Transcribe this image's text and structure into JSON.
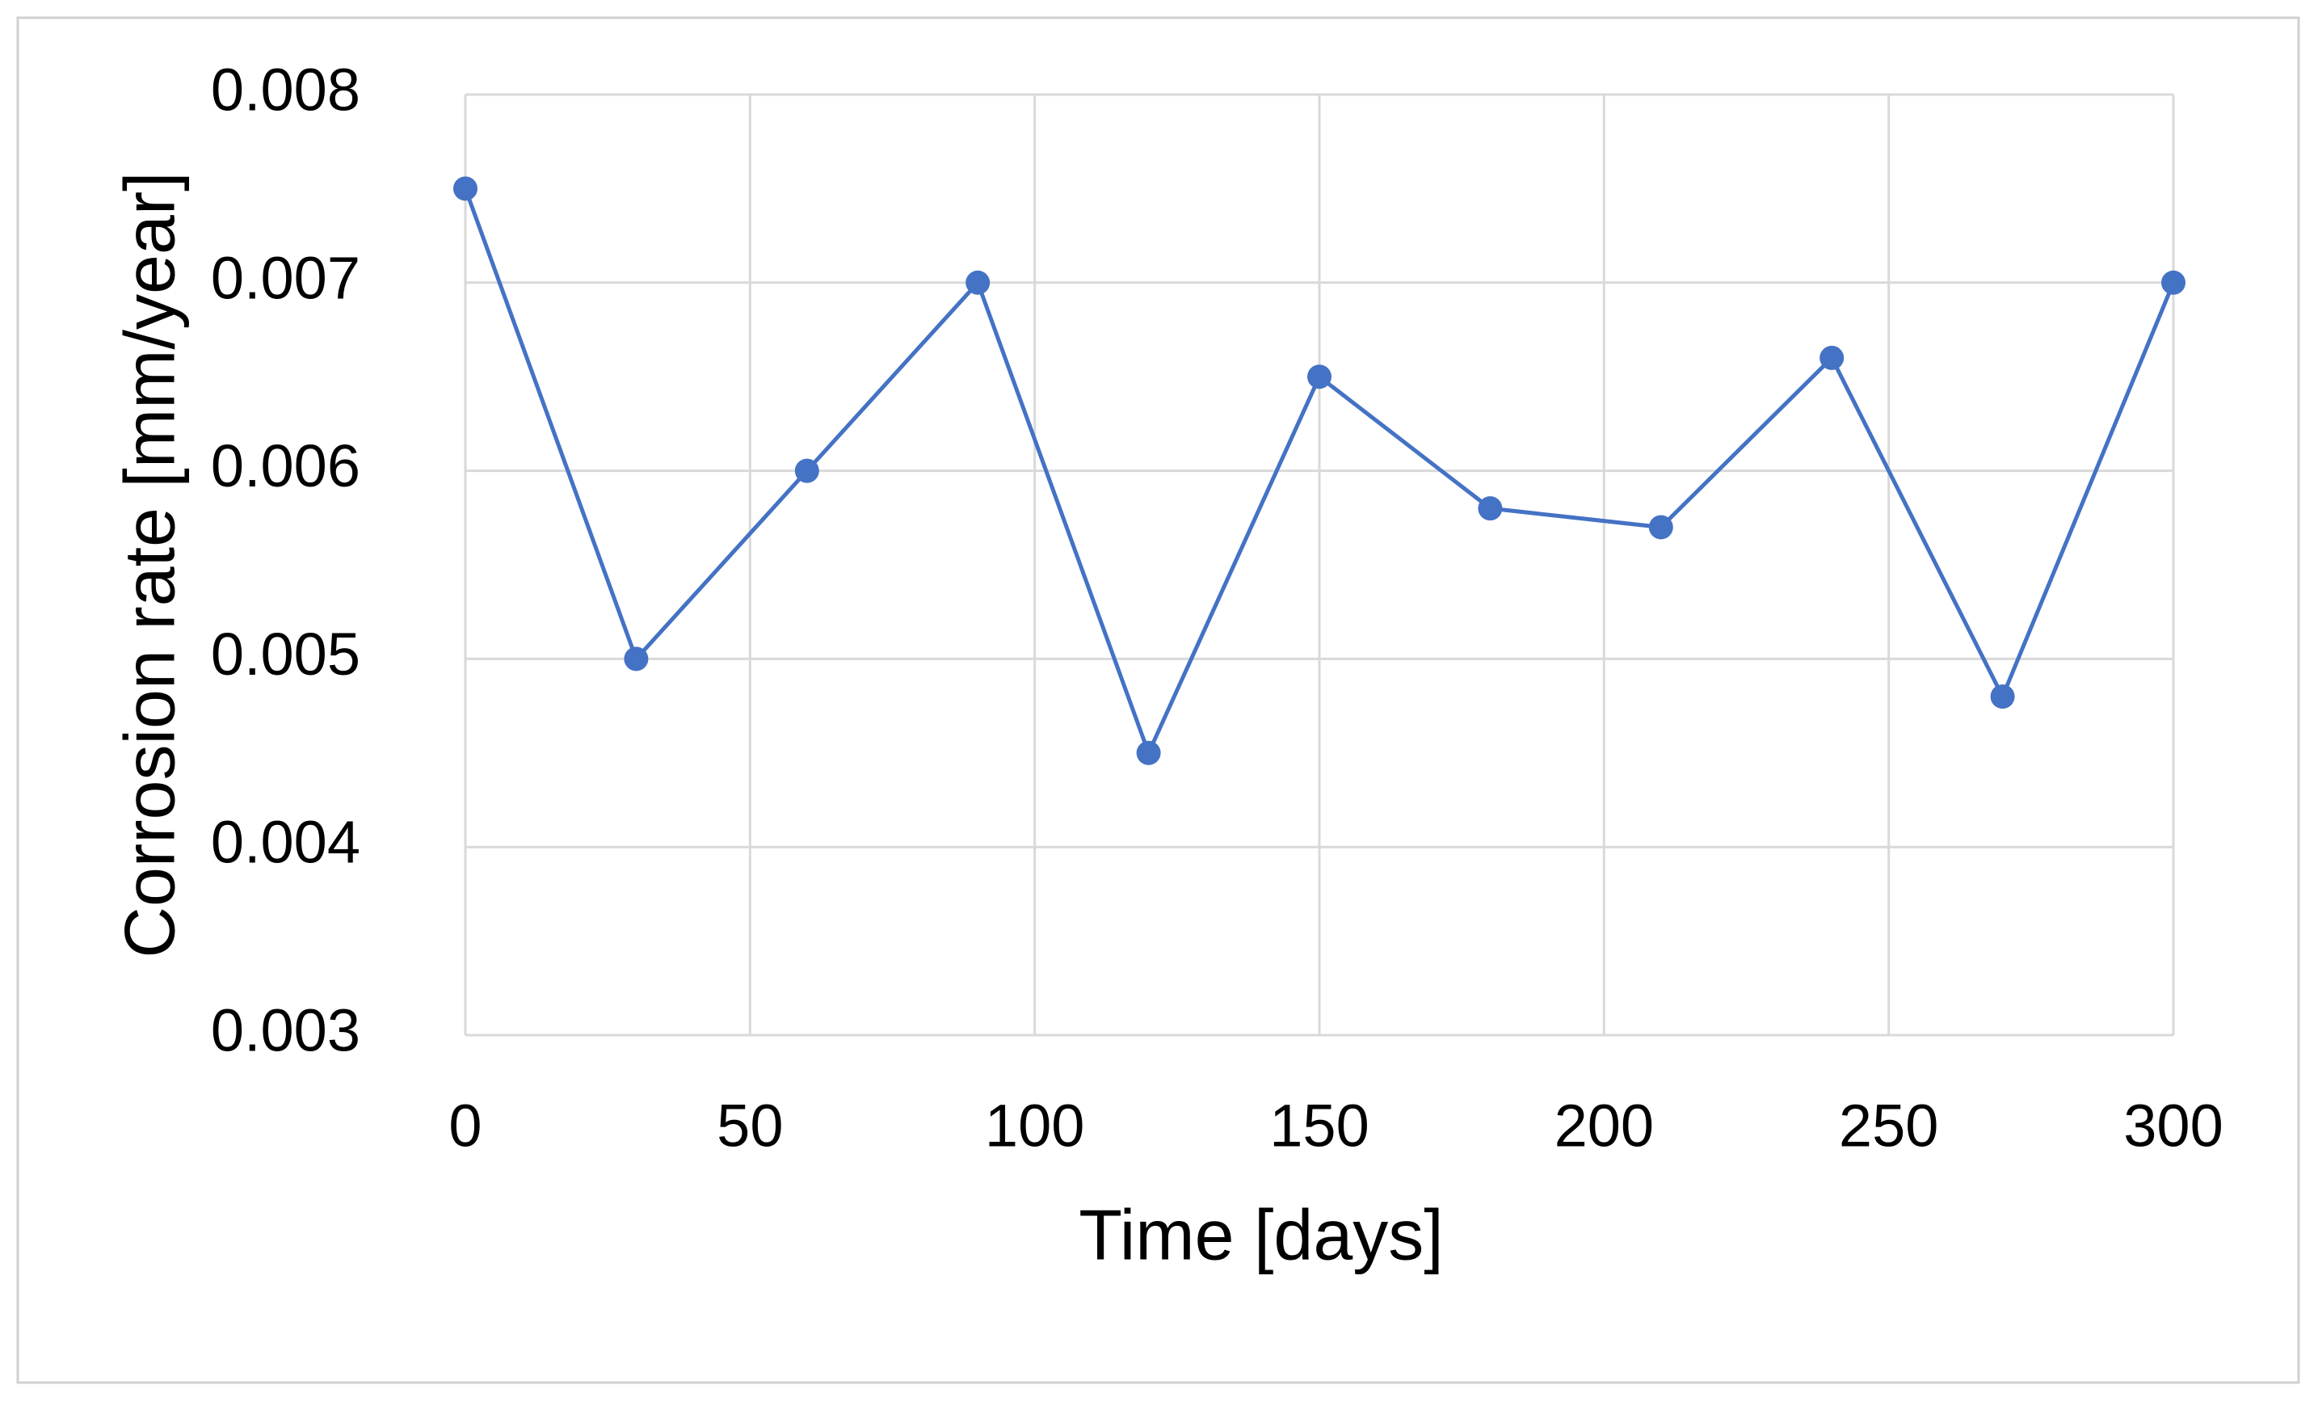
{
  "chart_data": {
    "type": "line",
    "x_label": "Time  [days]",
    "y_label": "Corrosion rate [mm/year]",
    "x": [
      0,
      30,
      60,
      90,
      120,
      150,
      180,
      210,
      240,
      270,
      300
    ],
    "values": [
      0.0075,
      0.005,
      0.006,
      0.007,
      0.0045,
      0.0065,
      0.0058,
      0.0057,
      0.0066,
      0.0048,
      0.007
    ],
    "color": "#4472c4",
    "xlim": [
      0,
      300
    ],
    "xticks": [
      0,
      50,
      100,
      150,
      200,
      250,
      300
    ],
    "ylim": [
      0.003,
      0.008
    ],
    "yticks": [
      0.003,
      0.004,
      0.005,
      0.006,
      0.007,
      0.008
    ],
    "grid": true
  }
}
